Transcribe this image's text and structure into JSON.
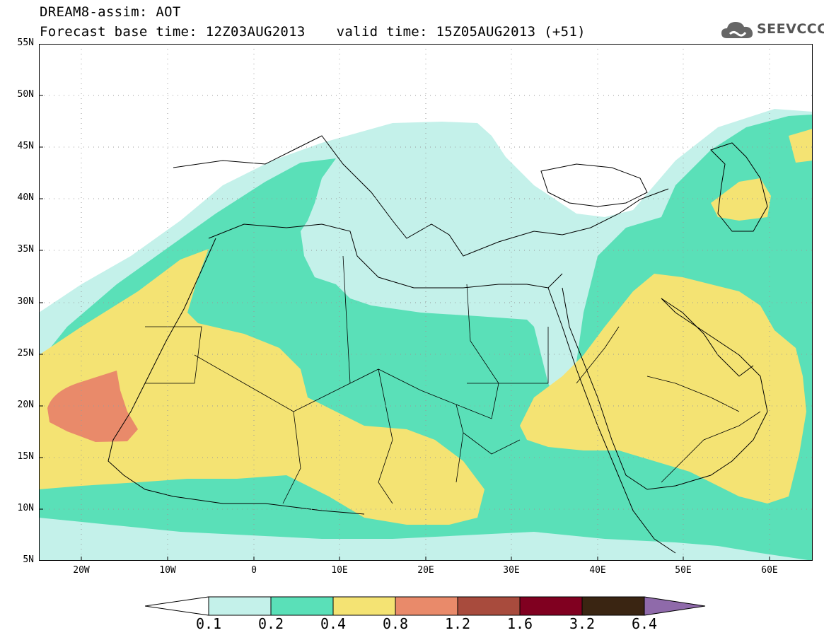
{
  "header": {
    "title": "DREAM8-assim: AOT",
    "base_time": "Forecast base time: 12Z03AUG2013",
    "valid_time": "valid time: 15Z05AUG2013 (+51)"
  },
  "logo": {
    "text": "SEEVCCC",
    "icon": "cloud-icon"
  },
  "map": {
    "variable": "AOT",
    "region": "North Africa, Mediterranean, Middle East",
    "lat_labels": [
      "55N",
      "50N",
      "45N",
      "40N",
      "35N",
      "30N",
      "25N",
      "20N",
      "15N",
      "10N",
      "5N"
    ],
    "lon_labels": [
      "20W",
      "10W",
      "0",
      "10E",
      "20E",
      "30E",
      "40E",
      "50E",
      "60E"
    ],
    "lat_range": [
      5,
      55
    ],
    "lon_range": [
      -25,
      65
    ],
    "grid": "dotted"
  },
  "colorbar": {
    "labels": [
      "0.1",
      "0.2",
      "0.4",
      "0.8",
      "1.2",
      "1.6",
      "3.2",
      "6.4"
    ],
    "colors": [
      "#ffffff",
      "#c4f1ea",
      "#5ae0b8",
      "#f4e373",
      "#e98a6a",
      "#a84b3d",
      "#800020",
      "#3a2512",
      "#8f6aaa"
    ]
  },
  "colors": {
    "class_0_1": "#c4f1ea",
    "class_0_2": "#5ae0b8",
    "class_0_4": "#f4e373",
    "class_0_8": "#e98a6a"
  }
}
